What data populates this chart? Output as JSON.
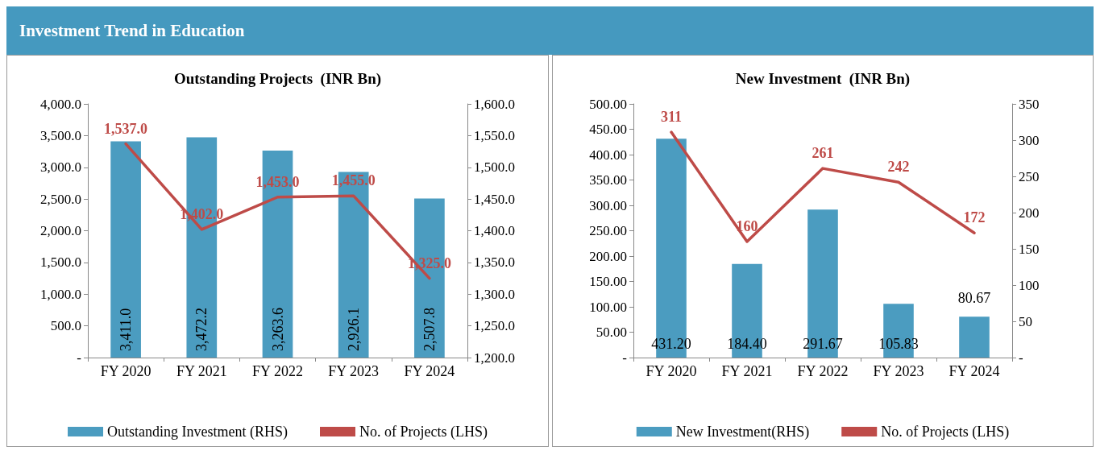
{
  "chart_data": [
    {
      "type": "other",
      "title": "Investment Trend in Education"
    },
    {
      "type": "bar",
      "title": "Outstanding Projects  (INR Bn)",
      "categories": [
        "FY 2020",
        "FY 2021",
        "FY 2022",
        "FY 2023",
        "FY 2024"
      ],
      "series": [
        {
          "type": "bar",
          "name": "Outstanding Investment (RHS)",
          "color": "#4b9cc0",
          "values": [
            3411.0,
            3472.2,
            3263.6,
            2926.1,
            2507.8
          ],
          "value_labels": [
            "3,411.0",
            "3,472.2",
            "3,263.6",
            "2,926.1",
            "2,507.8"
          ]
        },
        {
          "type": "line",
          "name": "No. of Projects (LHS)",
          "color": "#be4b48",
          "axis": "y2",
          "values": [
            1537.0,
            1402.0,
            1453.0,
            1455.0,
            1325.0
          ],
          "value_labels": [
            "1,537.0",
            "1,402.0",
            "1,453.0",
            "1,455.0",
            "1,325.0"
          ]
        }
      ],
      "ylim": [
        0,
        4000
      ],
      "yticks": [
        {
          "value": 0,
          "label": "-"
        },
        {
          "value": 500,
          "label": "500.0"
        },
        {
          "value": 1000,
          "label": "1,000.0"
        },
        {
          "value": 1500,
          "label": "1,500.0"
        },
        {
          "value": 2000,
          "label": "2,000.0"
        },
        {
          "value": 2500,
          "label": "2,500.0"
        },
        {
          "value": 3000,
          "label": "3,000.0"
        },
        {
          "value": 3500,
          "label": "3,500.0"
        },
        {
          "value": 4000,
          "label": "4,000.0"
        }
      ],
      "y2lim": [
        1200,
        1600
      ],
      "y2ticks": [
        {
          "value": 1200,
          "label": "1,200.0"
        },
        {
          "value": 1250,
          "label": "1,250.0"
        },
        {
          "value": 1300,
          "label": "1,300.0"
        },
        {
          "value": 1350,
          "label": "1,350.0"
        },
        {
          "value": 1400,
          "label": "1,400.0"
        },
        {
          "value": 1450,
          "label": "1,450.0"
        },
        {
          "value": 1500,
          "label": "1,500.0"
        },
        {
          "value": 1550,
          "label": "1,550.0"
        },
        {
          "value": 1600,
          "label": "1,600.0"
        }
      ],
      "legend": "bottom",
      "marker": "none",
      "grid": false
    },
    {
      "type": "bar",
      "title": "New Investment  (INR Bn)",
      "categories": [
        "FY 2020",
        "FY 2021",
        "FY 2022",
        "FY 2023",
        "FY 2024"
      ],
      "series": [
        {
          "type": "bar",
          "name": "New Investment(RHS)",
          "color": "#4b9cc0",
          "values": [
            431.2,
            184.4,
            291.67,
            105.83,
            80.67
          ],
          "value_labels": [
            "431.20",
            "184.40",
            "291.67",
            "105.83",
            "80.67"
          ]
        },
        {
          "type": "line",
          "name": "No. of Projects (LHS)",
          "color": "#be4b48",
          "axis": "y2",
          "values": [
            311,
            160,
            261,
            242,
            172
          ],
          "value_labels": [
            "311",
            "160",
            "261",
            "242",
            "172"
          ]
        }
      ],
      "ylim": [
        0,
        500
      ],
      "yticks": [
        {
          "value": 0,
          "label": "-"
        },
        {
          "value": 50,
          "label": "50.00"
        },
        {
          "value": 100,
          "label": "100.00"
        },
        {
          "value": 150,
          "label": "150.00"
        },
        {
          "value": 200,
          "label": "200.00"
        },
        {
          "value": 250,
          "label": "250.00"
        },
        {
          "value": 300,
          "label": "300.00"
        },
        {
          "value": 350,
          "label": "350.00"
        },
        {
          "value": 400,
          "label": "400.00"
        },
        {
          "value": 450,
          "label": "450.00"
        },
        {
          "value": 500,
          "label": "500.00"
        }
      ],
      "y2lim": [
        0,
        350
      ],
      "y2ticks": [
        {
          "value": 0,
          "label": "-"
        },
        50,
        100,
        150,
        200,
        250,
        300,
        350
      ],
      "legend": "bottom",
      "marker": "none",
      "grid": false
    }
  ]
}
